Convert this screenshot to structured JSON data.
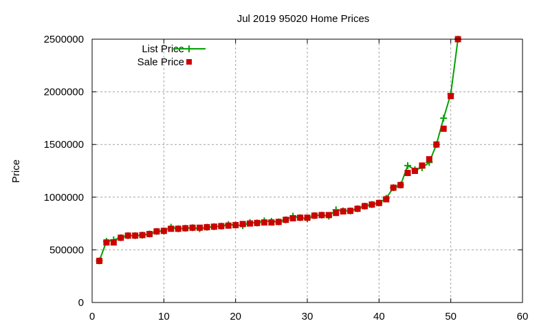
{
  "chart_data": {
    "type": "line",
    "title": "Jul 2019 95020 Home Prices",
    "xlabel": "",
    "ylabel": "Price",
    "xlim": [
      0,
      60
    ],
    "ylim": [
      0,
      2500000
    ],
    "xticks": [
      0,
      10,
      20,
      30,
      40,
      50,
      60
    ],
    "yticks": [
      0,
      500000,
      1000000,
      1500000,
      2000000,
      2500000
    ],
    "grid": true,
    "legend_placement": "top-left",
    "x": [
      1,
      2,
      3,
      4,
      5,
      6,
      7,
      8,
      9,
      10,
      11,
      12,
      13,
      14,
      15,
      16,
      17,
      18,
      19,
      20,
      21,
      22,
      23,
      24,
      25,
      26,
      27,
      28,
      29,
      30,
      31,
      32,
      33,
      34,
      35,
      36,
      37,
      38,
      39,
      40,
      41,
      42,
      43,
      44,
      45,
      46,
      47,
      48,
      49,
      50,
      51
    ],
    "series": [
      {
        "name": "List Price",
        "style": "linespoints",
        "color": "#00a000",
        "marker": "plus",
        "values": [
          395000,
          580000,
          595000,
          615000,
          635000,
          635000,
          640000,
          650000,
          675000,
          680000,
          715000,
          700000,
          705000,
          710000,
          700000,
          715000,
          720000,
          725000,
          740000,
          735000,
          730000,
          760000,
          755000,
          775000,
          770000,
          765000,
          785000,
          820000,
          805000,
          795000,
          825000,
          830000,
          820000,
          880000,
          870000,
          870000,
          890000,
          915000,
          930000,
          945000,
          990000,
          1090000,
          1115000,
          1300000,
          1260000,
          1280000,
          1330000,
          1500000,
          1750000,
          1980000,
          2500000
        ]
      },
      {
        "name": "Sale Price",
        "style": "points",
        "color": "#cc0000",
        "marker": "square",
        "values": [
          395000,
          570000,
          570000,
          615000,
          635000,
          635000,
          640000,
          650000,
          675000,
          680000,
          700000,
          700000,
          705000,
          710000,
          710000,
          715000,
          720000,
          725000,
          730000,
          735000,
          745000,
          750000,
          755000,
          760000,
          760000,
          765000,
          785000,
          800000,
          805000,
          805000,
          825000,
          830000,
          830000,
          850000,
          865000,
          870000,
          890000,
          915000,
          930000,
          945000,
          980000,
          1090000,
          1115000,
          1230000,
          1250000,
          1300000,
          1360000,
          1500000,
          1650000,
          1960000,
          2500000
        ]
      }
    ]
  }
}
